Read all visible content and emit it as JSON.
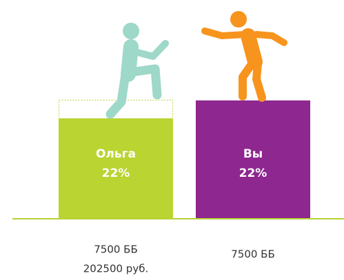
{
  "people": [
    {
      "name": "Ольга",
      "percent": "22%",
      "caption": [
        "7500 ББ",
        "202500 руб."
      ]
    },
    {
      "name": "Вы",
      "percent": "22%",
      "caption": [
        "7500 ББ"
      ]
    }
  ]
}
